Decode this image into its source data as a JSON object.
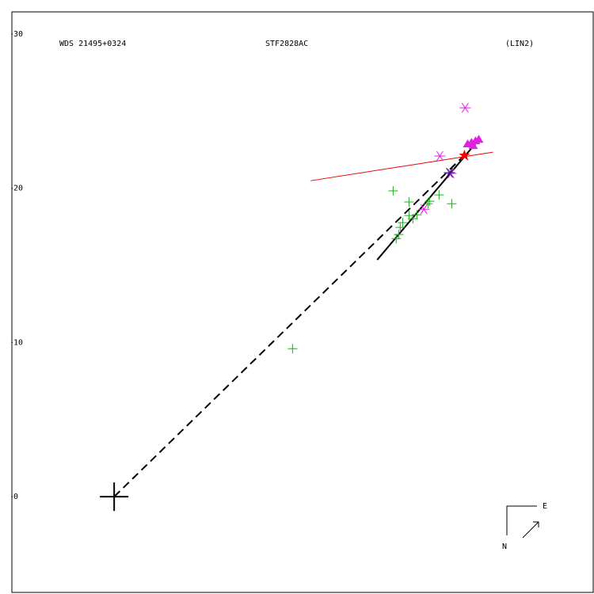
{
  "chart_data": {
    "type": "scatter",
    "labels": [
      "WDS 21495+0324",
      "STF2828AC",
      "(LIN2)"
    ],
    "xlim": [
      -6.63,
      31.1
    ],
    "ylim": [
      -6.21,
      31.44
    ],
    "yticks": [
      0,
      10,
      20,
      30
    ],
    "series": [
      {
        "marker": "plus",
        "color": "#22aa22",
        "x": [
          11.56,
          18.08,
          18.28,
          18.44,
          18.54,
          18.7,
          19.11,
          19.11,
          19.36,
          19.62,
          20.34,
          20.44,
          21.06,
          21.88
        ],
        "values": [
          9.6,
          19.83,
          16.74,
          17.0,
          17.46,
          17.77,
          19.11,
          18.23,
          18.03,
          18.28,
          19.0,
          19.16,
          19.57,
          19.0
        ]
      },
      {
        "marker": "asterisk",
        "color": "#e020e0",
        "x": [
          22.75,
          21.11,
          21.83,
          20.08
        ],
        "values": [
          25.22,
          22.09,
          20.96,
          18.64
        ]
      },
      {
        "marker": "triangle",
        "color": "#e020e0",
        "x": [
          22.91,
          23.16,
          23.42,
          23.63,
          23.27
        ],
        "values": [
          22.86,
          22.96,
          23.06,
          23.16,
          22.75
        ]
      },
      {
        "marker": "asterisk",
        "color": "#202080",
        "x": [
          21.73
        ],
        "values": [
          21.01
        ]
      },
      {
        "marker": "star",
        "color": "#ee0000",
        "x": [
          22.7
        ],
        "values": [
          22.14
        ]
      },
      {
        "marker": "bigplus",
        "color": "#000000",
        "x": [
          0
        ],
        "values": [
          0
        ]
      }
    ],
    "lines": [
      {
        "color": "#000000",
        "dash": "10,6",
        "width": 2,
        "x": [
          0,
          22.7
        ],
        "values": [
          0,
          22.14
        ]
      },
      {
        "color": "#000000",
        "dash": "",
        "width": 2,
        "x": [
          17.05,
          23.73
        ],
        "values": [
          15.36,
          23.27
        ]
      },
      {
        "color": "#ee0000",
        "dash": "",
        "width": 1,
        "x": [
          12.74,
          24.55
        ],
        "values": [
          20.49,
          22.34
        ]
      }
    ],
    "compass": {
      "east": "E",
      "north": "N"
    }
  }
}
